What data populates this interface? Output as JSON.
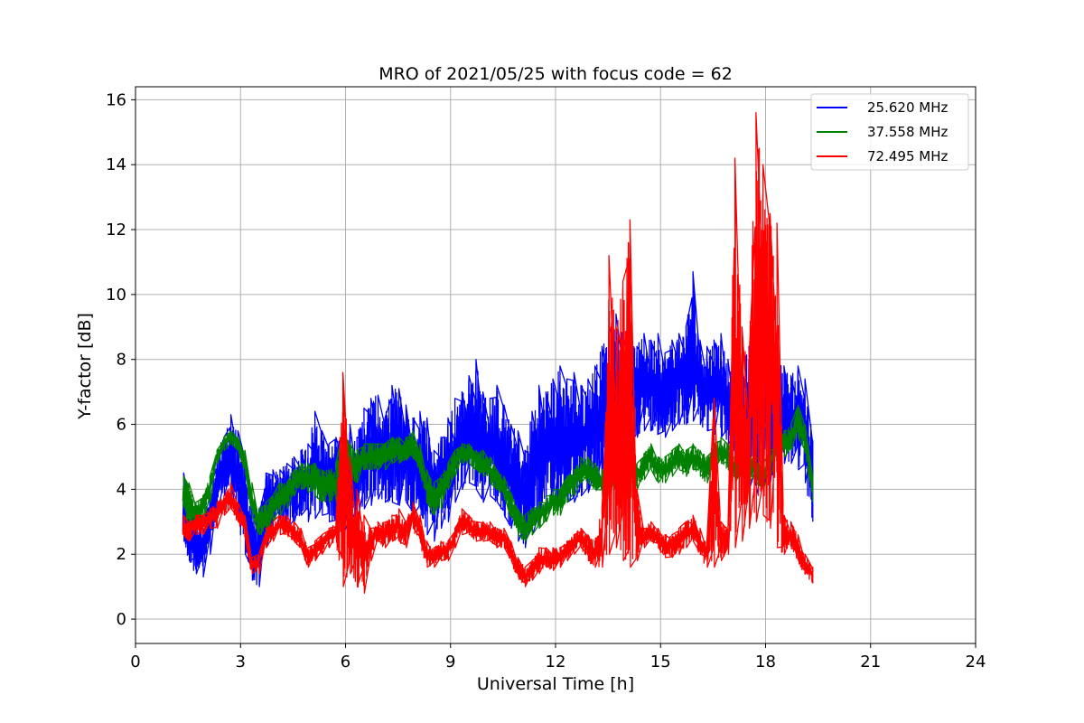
{
  "chart_data": {
    "type": "line",
    "title": "MRO of 2021/05/25 with focus code = 62",
    "xlabel": "Universal Time [h]",
    "ylabel": "Y-factor [dB]",
    "xlim": [
      0,
      24
    ],
    "ylim": [
      -0.75,
      16.4
    ],
    "xticks": [
      0,
      3,
      6,
      9,
      12,
      15,
      18,
      21,
      24
    ],
    "yticks": [
      0,
      2,
      4,
      6,
      8,
      10,
      12,
      14,
      16
    ],
    "grid": true,
    "legend_position": "top-right",
    "series": [
      {
        "name": "25.620 MHz",
        "color": "#0000ff",
        "x": [
          1.35,
          1.5,
          1.7,
          1.9,
          2.1,
          2.3,
          2.5,
          2.7,
          2.9,
          3.1,
          3.3,
          3.5,
          3.7,
          3.9,
          4.1,
          4.3,
          4.5,
          4.7,
          4.9,
          5.1,
          5.3,
          5.5,
          5.7,
          5.9,
          6.1,
          6.3,
          6.5,
          6.7,
          6.9,
          7.1,
          7.3,
          7.5,
          7.7,
          7.9,
          8.1,
          8.3,
          8.5,
          8.7,
          8.9,
          9.1,
          9.3,
          9.5,
          9.7,
          9.9,
          10.1,
          10.3,
          10.5,
          10.7,
          10.9,
          11.1,
          11.3,
          11.5,
          11.7,
          11.9,
          12.1,
          12.3,
          12.5,
          12.7,
          12.9,
          13.1,
          13.3,
          13.5,
          13.7,
          13.9,
          14.1,
          14.3,
          14.5,
          14.7,
          14.9,
          15.1,
          15.3,
          15.5,
          15.7,
          15.9,
          16.1,
          16.3,
          16.5,
          16.7,
          16.9,
          17.1,
          17.3,
          17.5,
          17.7,
          17.9,
          18.1,
          18.3,
          18.5,
          18.7,
          18.9,
          19.1,
          19.35
        ],
        "low": [
          2.4,
          1.8,
          1.4,
          1.3,
          2.0,
          3.2,
          3.8,
          3.8,
          3.0,
          2.0,
          1.2,
          1.0,
          2.2,
          2.6,
          3.0,
          2.8,
          3.0,
          3.2,
          3.0,
          3.1,
          3.2,
          3.0,
          3.0,
          2.6,
          2.8,
          3.0,
          3.4,
          3.5,
          3.7,
          3.6,
          3.6,
          3.5,
          3.6,
          3.2,
          3.4,
          2.6,
          2.4,
          2.8,
          3.0,
          3.6,
          4.0,
          4.2,
          4.0,
          3.6,
          3.8,
          3.6,
          3.2,
          2.8,
          2.4,
          2.2,
          2.6,
          3.0,
          3.2,
          3.4,
          3.4,
          3.6,
          3.6,
          3.8,
          3.9,
          4.0,
          4.2,
          4.6,
          5.0,
          5.2,
          5.4,
          5.6,
          5.8,
          5.8,
          5.7,
          5.6,
          5.8,
          6.0,
          6.0,
          6.1,
          6.0,
          5.8,
          5.7,
          5.6,
          5.4,
          4.8,
          4.2,
          4.0,
          3.8,
          4.0,
          4.2,
          4.6,
          4.8,
          4.8,
          4.6,
          4.2,
          3.0
        ],
        "high": [
          4.5,
          3.8,
          3.4,
          3.2,
          4.0,
          4.8,
          5.6,
          6.3,
          5.8,
          5.0,
          3.6,
          3.2,
          4.5,
          4.6,
          4.6,
          4.8,
          5.0,
          5.2,
          5.4,
          6.4,
          5.8,
          5.4,
          5.6,
          5.8,
          6.0,
          5.6,
          6.5,
          6.8,
          6.9,
          6.2,
          7.2,
          7.1,
          6.6,
          6.2,
          6.4,
          6.2,
          5.2,
          5.6,
          6.2,
          6.8,
          7.0,
          7.5,
          8.0,
          7.0,
          6.8,
          7.2,
          6.6,
          6.0,
          5.8,
          5.2,
          6.4,
          7.2,
          7.0,
          7.4,
          7.8,
          7.4,
          7.6,
          7.2,
          7.4,
          7.8,
          8.4,
          9.0,
          9.4,
          8.8,
          8.6,
          8.4,
          8.8,
          8.6,
          8.8,
          8.2,
          8.6,
          8.8,
          9.0,
          10.7,
          8.6,
          8.4,
          8.6,
          8.8,
          8.0,
          7.4,
          7.8,
          8.4,
          9.0,
          9.1,
          8.6,
          8.0,
          7.8,
          7.5,
          7.8,
          7.4,
          5.5
        ]
      },
      {
        "name": "37.558 MHz",
        "color": "#008000",
        "x": [
          1.35,
          1.5,
          1.7,
          1.9,
          2.1,
          2.3,
          2.5,
          2.7,
          2.9,
          3.1,
          3.3,
          3.5,
          3.7,
          3.9,
          4.1,
          4.3,
          4.5,
          4.7,
          4.9,
          5.1,
          5.3,
          5.5,
          5.7,
          5.9,
          6.1,
          6.3,
          6.5,
          6.7,
          6.9,
          7.1,
          7.3,
          7.5,
          7.7,
          7.9,
          8.1,
          8.3,
          8.5,
          8.7,
          8.9,
          9.1,
          9.3,
          9.5,
          9.7,
          9.9,
          10.1,
          10.3,
          10.5,
          10.7,
          10.9,
          11.1,
          11.3,
          11.5,
          11.7,
          11.9,
          12.1,
          12.3,
          12.5,
          12.7,
          12.9,
          13.1,
          13.3,
          13.5,
          13.7,
          13.9,
          14.1,
          14.3,
          14.5,
          14.7,
          14.9,
          15.1,
          15.3,
          15.5,
          15.7,
          15.9,
          16.1,
          16.3,
          16.5,
          16.7,
          16.9,
          17.1,
          17.3,
          17.5,
          17.7,
          17.9,
          18.1,
          18.3,
          18.5,
          18.7,
          18.9,
          19.1,
          19.35
        ],
        "low": [
          3.5,
          2.8,
          2.8,
          3.0,
          3.6,
          4.8,
          5.2,
          5.4,
          5.2,
          4.6,
          3.2,
          2.6,
          2.6,
          3.0,
          3.2,
          3.4,
          3.8,
          4.0,
          3.9,
          3.8,
          3.6,
          3.6,
          3.6,
          4.0,
          4.4,
          4.2,
          4.6,
          4.6,
          4.6,
          4.6,
          4.8,
          4.8,
          4.9,
          5.0,
          4.6,
          3.6,
          3.2,
          3.4,
          4.0,
          4.4,
          4.8,
          4.8,
          4.6,
          4.4,
          4.2,
          4.0,
          3.8,
          3.2,
          2.6,
          2.4,
          2.6,
          2.8,
          3.0,
          3.2,
          3.2,
          3.6,
          3.8,
          4.2,
          4.2,
          4.0,
          3.8,
          3.8,
          4.2,
          4.3,
          4.2,
          4.0,
          4.3,
          4.6,
          4.2,
          4.2,
          4.4,
          4.6,
          4.4,
          4.6,
          4.4,
          4.2,
          4.6,
          4.8,
          4.6,
          4.2,
          4.4,
          4.2,
          4.2,
          4.0,
          4.4,
          4.8,
          5.0,
          5.2,
          5.6,
          5.2,
          3.6
        ],
        "high": [
          4.4,
          4.2,
          3.6,
          3.8,
          4.4,
          5.2,
          5.6,
          5.8,
          5.6,
          5.2,
          4.2,
          3.4,
          3.6,
          3.8,
          4.2,
          4.2,
          4.6,
          4.8,
          4.8,
          4.8,
          4.6,
          4.6,
          4.8,
          6.0,
          5.4,
          5.2,
          5.4,
          5.4,
          5.4,
          5.4,
          5.6,
          5.6,
          5.6,
          5.8,
          5.4,
          4.6,
          4.2,
          4.4,
          4.8,
          5.2,
          5.4,
          5.4,
          5.2,
          5.2,
          5.0,
          4.6,
          4.4,
          3.9,
          3.4,
          3.2,
          3.4,
          3.6,
          3.8,
          4.0,
          4.0,
          4.4,
          4.6,
          5.0,
          5.0,
          4.8,
          4.6,
          4.6,
          5.0,
          5.1,
          5.0,
          4.8,
          5.1,
          5.4,
          5.0,
          5.0,
          5.2,
          5.4,
          5.2,
          5.4,
          5.2,
          5.0,
          5.4,
          5.6,
          5.4,
          5.0,
          5.2,
          5.0,
          5.0,
          4.8,
          5.2,
          5.6,
          5.8,
          6.0,
          6.6,
          6.0,
          4.4
        ]
      },
      {
        "name": "72.495 MHz",
        "color": "#ff0000",
        "x": [
          1.35,
          1.5,
          1.7,
          1.9,
          2.1,
          2.3,
          2.5,
          2.7,
          2.9,
          3.1,
          3.3,
          3.5,
          3.7,
          3.9,
          4.1,
          4.3,
          4.5,
          4.7,
          4.9,
          5.1,
          5.3,
          5.5,
          5.7,
          5.9,
          6.1,
          6.3,
          6.5,
          6.7,
          6.9,
          7.1,
          7.3,
          7.5,
          7.7,
          7.9,
          8.1,
          8.3,
          8.5,
          8.7,
          8.9,
          9.1,
          9.3,
          9.5,
          9.7,
          9.9,
          10.1,
          10.3,
          10.5,
          10.7,
          10.9,
          11.1,
          11.3,
          11.5,
          11.7,
          11.9,
          12.1,
          12.3,
          12.5,
          12.7,
          12.9,
          13.1,
          13.3,
          13.5,
          13.7,
          13.9,
          14.1,
          14.3,
          14.5,
          14.7,
          14.9,
          15.1,
          15.3,
          15.5,
          15.7,
          15.9,
          16.1,
          16.3,
          16.5,
          16.7,
          16.9,
          17.1,
          17.3,
          17.5,
          17.7,
          17.9,
          18.1,
          18.3,
          18.5,
          18.7,
          18.9,
          19.1,
          19.35
        ],
        "low": [
          2.6,
          2.4,
          2.6,
          2.6,
          2.8,
          2.8,
          3.2,
          3.4,
          3.0,
          2.6,
          1.4,
          1.4,
          2.2,
          2.4,
          2.6,
          2.6,
          2.4,
          2.2,
          1.6,
          1.8,
          2.0,
          2.2,
          2.4,
          1.0,
          1.4,
          1.0,
          0.8,
          1.8,
          2.4,
          2.2,
          2.4,
          2.4,
          2.2,
          2.8,
          2.4,
          1.6,
          1.6,
          1.8,
          1.8,
          2.2,
          2.6,
          2.6,
          2.4,
          2.4,
          2.4,
          2.2,
          2.2,
          1.8,
          1.3,
          1.0,
          1.2,
          1.4,
          1.6,
          1.5,
          1.6,
          1.8,
          2.0,
          2.2,
          1.8,
          1.6,
          1.6,
          2.0,
          2.2,
          1.8,
          1.6,
          1.8,
          2.2,
          2.4,
          2.2,
          1.9,
          1.9,
          2.0,
          2.2,
          2.4,
          2.0,
          1.6,
          1.6,
          1.8,
          2.0,
          2.2,
          2.4,
          2.8,
          3.0,
          3.2,
          2.8,
          2.2,
          2.0,
          2.2,
          1.8,
          1.4,
          1.1
        ],
        "high": [
          3.2,
          3.0,
          3.2,
          3.2,
          3.4,
          3.6,
          3.8,
          4.2,
          3.6,
          3.2,
          1.9,
          2.0,
          2.8,
          3.0,
          3.2,
          3.2,
          3.0,
          2.8,
          2.2,
          2.4,
          2.6,
          2.8,
          3.0,
          7.6,
          5.0,
          4.0,
          3.2,
          2.8,
          3.0,
          3.0,
          3.2,
          3.4,
          3.0,
          3.6,
          3.2,
          2.4,
          2.2,
          2.4,
          2.4,
          2.8,
          3.4,
          3.2,
          3.0,
          3.0,
          3.0,
          2.8,
          2.8,
          2.4,
          1.9,
          1.6,
          1.8,
          2.2,
          2.2,
          2.2,
          2.2,
          2.4,
          2.6,
          2.8,
          2.6,
          2.4,
          3.4,
          11.2,
          9.0,
          10.4,
          12.3,
          4.0,
          2.8,
          3.0,
          2.8,
          2.6,
          2.6,
          2.8,
          3.0,
          3.2,
          2.8,
          2.4,
          6.8,
          3.0,
          2.8,
          14.2,
          9.0,
          8.0,
          15.6,
          14.0,
          12.5,
          12.2,
          3.2,
          3.0,
          2.6,
          2.0,
          1.6
        ]
      }
    ]
  }
}
